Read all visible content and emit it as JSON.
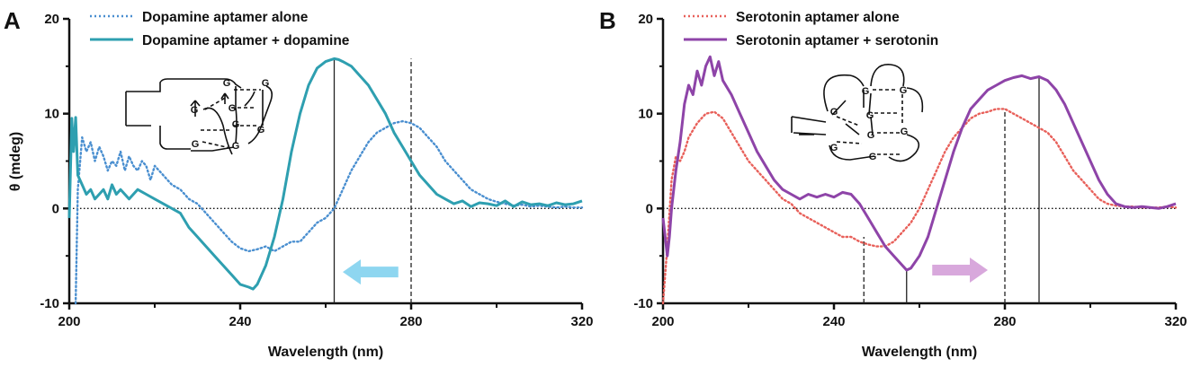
{
  "chart_data": [
    {
      "panel_label": "A",
      "type": "line",
      "xlabel": "Wavelength (nm)",
      "ylabel": "θ (mdeg)",
      "xlim": [
        200,
        320
      ],
      "ylim": [
        -10,
        20
      ],
      "xticks": [
        200,
        240,
        280,
        320
      ],
      "yticks": [
        -10,
        0,
        10,
        20
      ],
      "zero_line": true,
      "legend_position": "top-left",
      "series": [
        {
          "name": "Dopamine aptamer alone",
          "style": "dotted",
          "color": "#4a8fd0",
          "x": [
            201.5,
            202,
            203,
            204,
            205,
            206,
            207,
            208,
            209,
            210,
            211,
            212,
            213,
            214,
            215,
            216,
            217,
            218,
            219,
            220,
            222,
            224,
            226,
            228,
            230,
            232,
            234,
            236,
            238,
            240,
            242,
            244,
            246,
            248,
            250,
            252,
            254,
            256,
            258,
            260,
            262,
            264,
            266,
            268,
            270,
            272,
            274,
            276,
            278,
            280,
            282,
            284,
            286,
            288,
            290,
            292,
            294,
            296,
            298,
            300,
            302,
            304,
            306,
            308,
            310,
            312,
            314,
            316,
            318,
            320
          ],
          "y": [
            -10,
            2,
            7.5,
            6,
            7,
            5,
            6.5,
            5.5,
            4,
            5,
            4.5,
            6,
            4,
            5.5,
            4.5,
            4,
            5,
            4.5,
            3,
            4.5,
            3.5,
            2.5,
            2,
            1,
            0.5,
            -0.5,
            -1.5,
            -2.5,
            -3.5,
            -4.2,
            -4.5,
            -4.3,
            -4,
            -4.5,
            -4,
            -3.5,
            -3.5,
            -2.5,
            -1.5,
            -1,
            0,
            2,
            4,
            5.5,
            7,
            8,
            8.5,
            9,
            9.2,
            9,
            8.5,
            7.5,
            6.5,
            5,
            4,
            3,
            2,
            1.5,
            1,
            0.7,
            0.5,
            0.3,
            0.4,
            0.2,
            0.3,
            0.2,
            0.1,
            0.2,
            0.1,
            0.1
          ]
        },
        {
          "name": "Dopamine aptamer + dopamine",
          "style": "solid",
          "color": "#2e9fb0",
          "x": [
            200,
            200.6,
            201,
            201.5,
            202,
            203,
            204,
            205,
            206,
            207,
            208,
            209,
            210,
            211,
            212,
            214,
            216,
            218,
            220,
            222,
            224,
            226,
            228,
            230,
            232,
            234,
            236,
            238,
            240,
            242,
            243,
            244,
            246,
            248,
            250,
            252,
            254,
            256,
            258,
            260,
            262,
            263,
            264,
            266,
            268,
            270,
            272,
            274,
            276,
            278,
            280,
            282,
            284,
            286,
            288,
            290,
            292,
            294,
            296,
            298,
            300,
            302,
            304,
            306,
            308,
            310,
            312,
            314,
            316,
            318,
            320
          ],
          "y": [
            -1,
            9.5,
            6,
            9.6,
            3.5,
            2.5,
            1.5,
            2,
            1,
            1.5,
            2,
            1,
            2.5,
            1.5,
            2,
            1,
            2,
            1.5,
            1,
            0.5,
            0,
            -0.5,
            -2,
            -3,
            -4,
            -5,
            -6,
            -7,
            -8,
            -8.3,
            -8.5,
            -8,
            -6,
            -3,
            1,
            6,
            10,
            13,
            14.8,
            15.5,
            15.8,
            15.7,
            15.5,
            15,
            14,
            13,
            11.5,
            10,
            8,
            6.5,
            5,
            3.5,
            2.5,
            1.5,
            1,
            0.5,
            0.8,
            0.2,
            0.6,
            0.5,
            0.3,
            0.8,
            0.2,
            0.7,
            0.4,
            0.5,
            0.3,
            0.6,
            0.4,
            0.5,
            0.8
          ]
        }
      ],
      "reference_lines": [
        {
          "x": 262,
          "style": "solid",
          "color": "#222222"
        },
        {
          "x": 280,
          "style": "dashed",
          "color": "#222222"
        }
      ],
      "arrow": {
        "direction": "left",
        "color": "#8ed6f0",
        "from_x": 277,
        "to_x": 264,
        "y": -6.7
      },
      "aptamer_labels": [
        "G",
        "G",
        "G",
        "G",
        "G",
        "G",
        "G",
        "G"
      ]
    },
    {
      "panel_label": "B",
      "type": "line",
      "xlabel": "Wavelength (nm)",
      "ylabel": "",
      "xlim": [
        200,
        320
      ],
      "ylim": [
        -10,
        20
      ],
      "xticks": [
        200,
        240,
        280,
        320
      ],
      "yticks": [
        -10,
        0,
        10,
        20
      ],
      "zero_line": true,
      "legend_position": "top-left",
      "series": [
        {
          "name": "Serotonin aptamer alone",
          "style": "dotted",
          "color": "#e8605a",
          "x": [
            200,
            201,
            202,
            203,
            204,
            205,
            206,
            208,
            210,
            212,
            214,
            216,
            218,
            220,
            222,
            224,
            226,
            228,
            230,
            232,
            234,
            236,
            238,
            240,
            242,
            244,
            246,
            248,
            250,
            252,
            254,
            256,
            258,
            260,
            262,
            264,
            266,
            268,
            270,
            272,
            274,
            276,
            278,
            280,
            282,
            284,
            286,
            288,
            290,
            292,
            294,
            296,
            298,
            300,
            302,
            304,
            306,
            308,
            310,
            312,
            314,
            316,
            318,
            320
          ],
          "y": [
            -10,
            -4,
            3,
            5.5,
            5,
            6,
            7.5,
            9,
            10,
            10.2,
            9.5,
            8,
            6.5,
            5,
            4,
            3,
            2,
            1,
            0.5,
            -0.5,
            -1,
            -1.5,
            -2,
            -2.5,
            -3,
            -3,
            -3.5,
            -3.8,
            -4,
            -4,
            -3.5,
            -2.5,
            -1.5,
            0,
            2,
            4,
            6,
            7.5,
            8.5,
            9.5,
            10,
            10.2,
            10.5,
            10.5,
            10,
            9.5,
            9,
            8.5,
            8,
            7,
            5.5,
            4,
            3,
            2,
            1,
            0.5,
            0.3,
            0.2,
            0.2,
            0.1,
            0.1,
            0.1,
            0.2,
            0.1
          ]
        },
        {
          "name": "Serotonin aptamer + serotonin",
          "style": "solid",
          "color": "#8e44a8",
          "x": [
            200,
            201,
            201.5,
            202,
            203,
            204,
            205,
            206,
            207,
            208,
            209,
            210,
            211,
            212,
            213,
            214,
            216,
            218,
            220,
            222,
            224,
            226,
            228,
            230,
            232,
            234,
            236,
            238,
            240,
            242,
            244,
            246,
            248,
            250,
            252,
            254,
            256,
            257,
            258,
            260,
            262,
            264,
            266,
            268,
            270,
            272,
            274,
            276,
            278,
            280,
            282,
            284,
            286,
            288,
            290,
            292,
            294,
            296,
            298,
            300,
            302,
            304,
            306,
            308,
            310,
            312,
            314,
            316,
            318,
            320
          ],
          "y": [
            -1,
            -5,
            -3,
            0,
            4,
            7,
            11,
            13,
            12,
            14.5,
            13,
            15,
            16,
            14,
            15.5,
            13.5,
            12,
            10,
            8,
            6,
            4.5,
            3,
            2,
            1.5,
            1,
            1.5,
            1.2,
            1.5,
            1.2,
            1.7,
            1.5,
            0.5,
            -1,
            -2.5,
            -4,
            -5,
            -6,
            -6.5,
            -6.3,
            -5,
            -3,
            0,
            3,
            6,
            8.5,
            10.5,
            11.5,
            12.5,
            13,
            13.5,
            13.8,
            14,
            13.7,
            13.9,
            13.5,
            12.5,
            11,
            9,
            7,
            5,
            3,
            1.5,
            0.5,
            0.2,
            0.1,
            0.2,
            0.1,
            0,
            0.2,
            0.5
          ]
        }
      ],
      "reference_lines": [
        {
          "x": 247,
          "style": "dashed",
          "color": "#222222",
          "to_y": -3
        },
        {
          "x": 257,
          "style": "solid",
          "color": "#222222",
          "to_y": -6.5
        },
        {
          "x": 280,
          "style": "dashed",
          "color": "#222222",
          "to_y": 10.5
        },
        {
          "x": 288,
          "style": "solid",
          "color": "#222222",
          "to_y": 14
        }
      ],
      "arrow": {
        "direction": "right",
        "color": "#d8a8dc",
        "from_x": 263,
        "to_x": 276,
        "y": -6.5
      },
      "aptamer_labels": [
        "G",
        "G",
        "G",
        "G",
        "G",
        "G",
        "G",
        "G"
      ]
    }
  ]
}
